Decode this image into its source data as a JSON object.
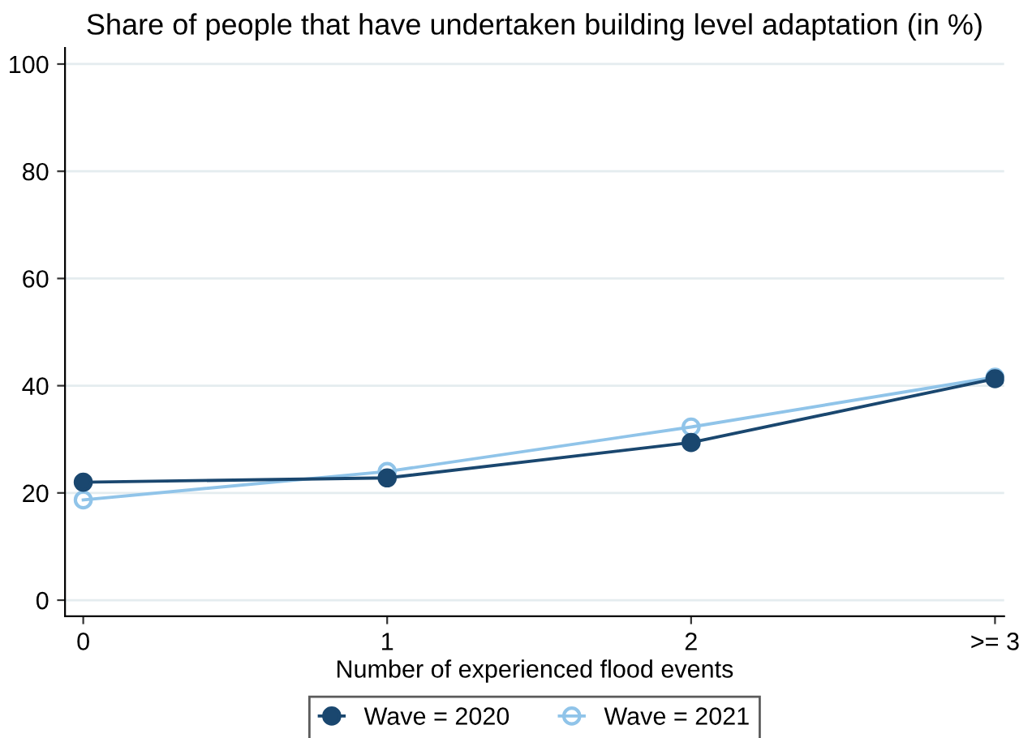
{
  "chart_data": {
    "type": "line",
    "title": "Share of people that have undertaken building level adaptation (in %)",
    "xlabel": "Number of experienced flood events",
    "x": [
      0,
      1,
      2,
      3
    ],
    "series": [
      {
        "name": "Wave = 2020",
        "color": "#1a476f",
        "values": [
          22.0,
          22.8,
          29.4,
          41.3
        ]
      },
      {
        "name": "Wave = 2021",
        "color": "#90c4e9",
        "values": [
          18.7,
          24.0,
          32.3,
          41.6
        ]
      }
    ],
    "xlim": [
      -0.06,
      3.03
    ],
    "xticks": [
      0,
      1,
      2,
      {
        "value": 3,
        "label": ">= 3"
      }
    ],
    "ylim": [
      -3,
      103
    ],
    "yticks": [
      0,
      20,
      40,
      60,
      80,
      100
    ],
    "grid": "y",
    "legend": "bottom",
    "marker": "circle",
    "line_style": "solid"
  }
}
